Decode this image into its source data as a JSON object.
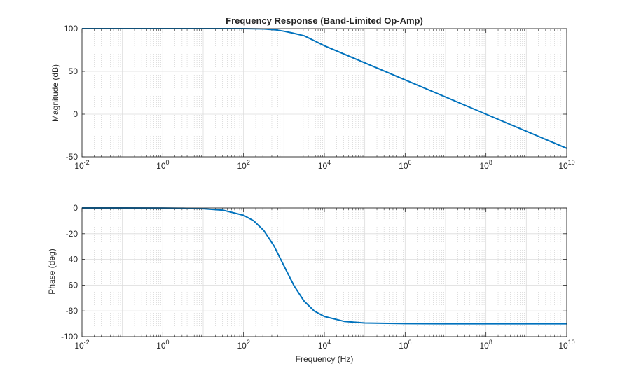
{
  "chart_data": [
    {
      "type": "line",
      "title": "Frequency Response (Band-Limited Op-Amp)",
      "xlabel": "",
      "ylabel": "Magnitude (dB)",
      "xscale": "log",
      "xlim_exp": [
        -2,
        10
      ],
      "ylim": [
        -50,
        100
      ],
      "xtick_exponents": [
        "-2",
        "0",
        "2",
        "4",
        "6",
        "8",
        "10"
      ],
      "ytick_labels": [
        "100",
        "50",
        "0",
        "-50"
      ],
      "grid": true,
      "x_log10": [
        -2,
        -1,
        0,
        1,
        2,
        2.5,
        2.8,
        3,
        3.2,
        3.5,
        4,
        5,
        6,
        7,
        8,
        9,
        10
      ],
      "y": [
        100,
        100,
        100,
        100,
        100,
        99.6,
        98.5,
        97,
        95,
        91.6,
        80,
        60,
        40,
        20,
        0,
        -20,
        -40
      ],
      "color": "#0072BD"
    },
    {
      "type": "line",
      "title": "",
      "xlabel": "Frequency (Hz)",
      "ylabel": "Phase (deg)",
      "xscale": "log",
      "xlim_exp": [
        -2,
        10
      ],
      "ylim": [
        -100,
        0
      ],
      "xtick_exponents": [
        "-2",
        "0",
        "2",
        "4",
        "6",
        "8",
        "10"
      ],
      "ytick_labels": [
        "0",
        "-20",
        "-40",
        "-60",
        "-80",
        "-100"
      ],
      "grid": true,
      "x_log10": [
        -2,
        -1,
        0,
        0.5,
        1,
        1.5,
        2,
        2.25,
        2.5,
        2.75,
        3,
        3.25,
        3.5,
        3.75,
        4,
        4.5,
        5,
        6,
        7,
        8,
        9,
        10
      ],
      "y": [
        0,
        0,
        -0.06,
        -0.2,
        -0.6,
        -1.8,
        -5.7,
        -10,
        -17.5,
        -29.4,
        -45,
        -60.6,
        -72.5,
        -80.1,
        -84.3,
        -88.2,
        -89.4,
        -89.9,
        -90,
        -90,
        -90,
        -90
      ],
      "color": "#0072BD"
    }
  ]
}
